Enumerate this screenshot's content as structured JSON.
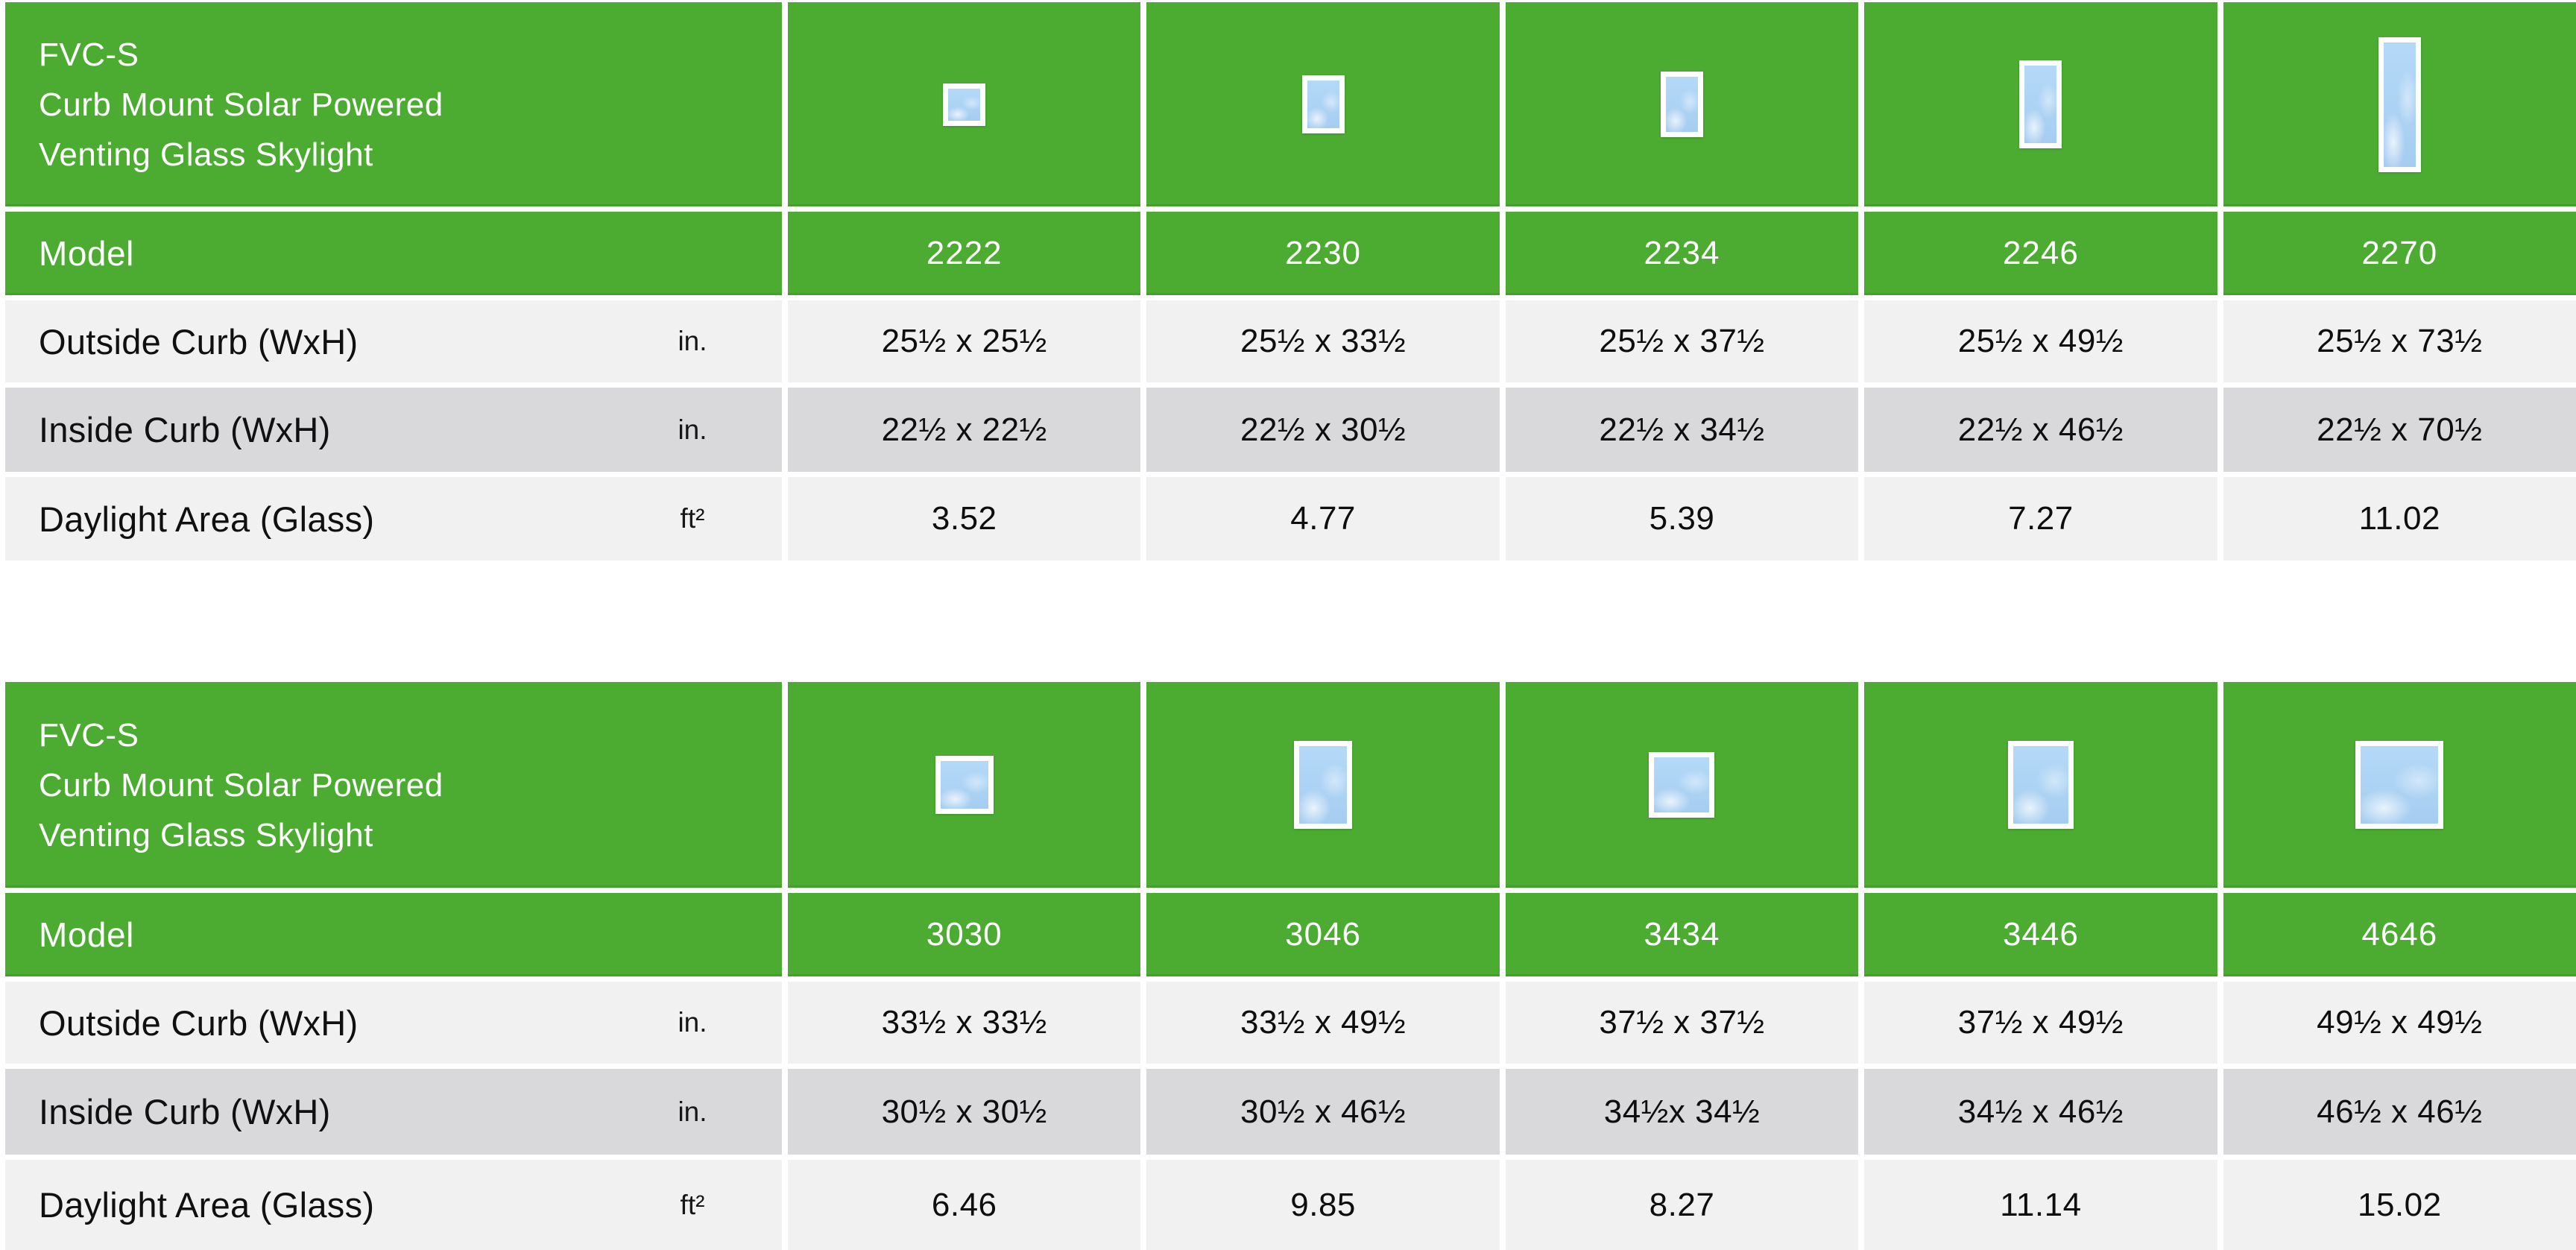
{
  "colors": {
    "green": "#4CAC31",
    "row_light": "#F1F1F2",
    "row_dark": "#D9D9DB",
    "sky_blue": "#ABD2F3",
    "text": "#1A1A1A"
  },
  "tables": [
    {
      "title_lines": [
        "FVC-S",
        "Curb Mount Solar Powered",
        "Venting Glass Skylight"
      ],
      "model_label": "Model",
      "models": [
        "2222",
        "2230",
        "2234",
        "2246",
        "2270"
      ],
      "icons": [
        [
          57,
          57
        ],
        [
          57,
          78
        ],
        [
          57,
          88
        ],
        [
          57,
          118
        ],
        [
          57,
          181
        ]
      ],
      "rows": [
        {
          "label": "Outside Curb (WxH)",
          "unit": "in.",
          "values": [
            "25½ x 25½",
            "25½ x 33½",
            "25½ x 37½",
            "25½ x 49½",
            "25½ x 73½"
          ]
        },
        {
          "label": "Inside Curb (WxH)",
          "unit": "in.",
          "values": [
            "22½ x 22½",
            "22½ x 30½",
            "22½ x 34½",
            "22½ x 46½",
            "22½ x 70½"
          ]
        },
        {
          "label": "Daylight Area (Glass)",
          "unit": "ft²",
          "values": [
            "3.52",
            "4.77",
            "5.39",
            "7.27",
            "11.02"
          ]
        }
      ]
    },
    {
      "title_lines": [
        "FVC-S",
        "Curb Mount Solar Powered",
        "Venting Glass Skylight"
      ],
      "model_label": "Model",
      "models": [
        "3030",
        "3046",
        "3434",
        "3446",
        "4646"
      ],
      "icons": [
        [
          78,
          78
        ],
        [
          78,
          118
        ],
        [
          88,
          88
        ],
        [
          88,
          118
        ],
        [
          118,
          118
        ]
      ],
      "rows": [
        {
          "label": "Outside Curb (WxH)",
          "unit": "in.",
          "values": [
            "33½ x 33½",
            "33½ x 49½",
            "37½ x 37½",
            "37½ x 49½",
            "49½ x 49½"
          ]
        },
        {
          "label": "Inside Curb (WxH)",
          "unit": "in.",
          "values": [
            "30½ x 30½",
            "30½ x 46½",
            "34½x 34½",
            "34½ x 46½",
            "46½ x 46½"
          ]
        },
        {
          "label": "Daylight Area (Glass)",
          "unit": "ft²",
          "values": [
            "6.46",
            "9.85",
            "8.27",
            "11.14",
            "15.02"
          ]
        }
      ]
    }
  ]
}
